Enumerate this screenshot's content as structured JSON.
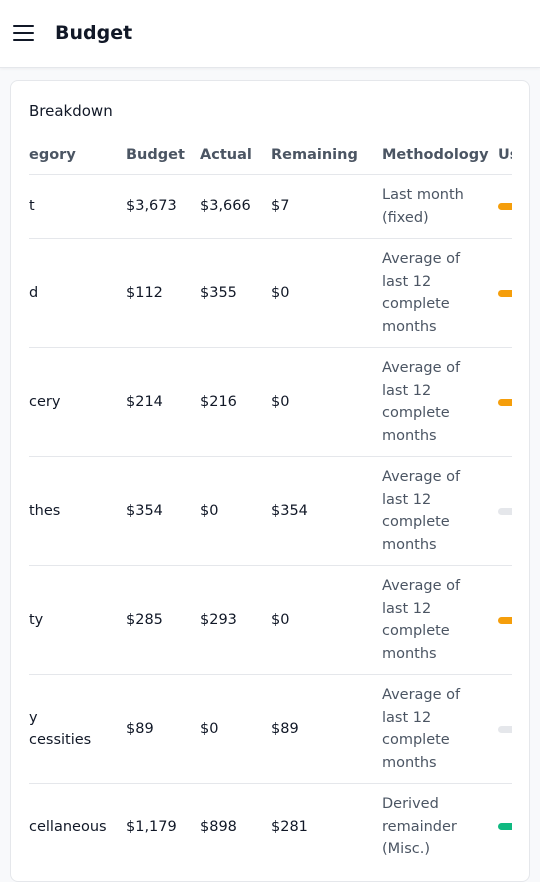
{
  "header": {
    "title": "Budget"
  },
  "card": {
    "title": "Breakdown"
  },
  "table": {
    "columns": [
      "egory",
      "Budget",
      "Actual",
      "Remaining",
      "Methodology",
      "Us"
    ],
    "rows": [
      {
        "category": "t",
        "budget": "$3,673",
        "actual": "$3,666",
        "remaining": "$7",
        "methodology": "Last month (fixed)",
        "usage_color": "#f59e0b"
      },
      {
        "category": "d",
        "budget": "$112",
        "actual": "$355",
        "remaining": "$0",
        "methodology": "Average of last 12 complete months",
        "usage_color": "#f59e0b"
      },
      {
        "category": "cery",
        "budget": "$214",
        "actual": "$216",
        "remaining": "$0",
        "methodology": "Average of last 12 complete months",
        "usage_color": "#f59e0b"
      },
      {
        "category": "thes",
        "budget": "$354",
        "actual": "$0",
        "remaining": "$354",
        "methodology": "Average of last 12 complete months",
        "usage_color": "#e5e7eb"
      },
      {
        "category": "ty",
        "budget": "$285",
        "actual": "$293",
        "remaining": "$0",
        "methodology": "Average of last 12 complete months",
        "usage_color": "#f59e0b"
      },
      {
        "category": "y\ncessities",
        "budget": "$89",
        "actual": "$0",
        "remaining": "$89",
        "methodology": "Average of last 12 complete months",
        "usage_color": "#e5e7eb"
      },
      {
        "category": "cellaneous",
        "budget": "$1,179",
        "actual": "$898",
        "remaining": "$281",
        "methodology": "Derived remainder (Misc.)",
        "usage_color": "#10b981"
      }
    ]
  }
}
